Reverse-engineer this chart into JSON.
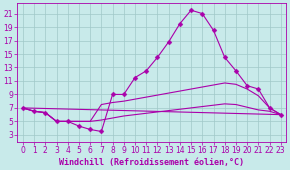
{
  "background_color": "#c8eaea",
  "grid_color": "#a0c8c8",
  "line_color": "#aa00aa",
  "xlabel": "Windchill (Refroidissement éolien,°C)",
  "xlabel_fontsize": 6,
  "ylabel_ticks": [
    3,
    5,
    7,
    9,
    11,
    13,
    15,
    17,
    19,
    21
  ],
  "xlabel_ticks": [
    0,
    1,
    2,
    3,
    4,
    5,
    6,
    7,
    8,
    9,
    10,
    11,
    12,
    13,
    14,
    15,
    16,
    17,
    18,
    19,
    20,
    21,
    22,
    23
  ],
  "xlim": [
    -0.5,
    23.5
  ],
  "ylim": [
    2.0,
    22.5
  ],
  "curve1_x": [
    0,
    1,
    2,
    3,
    4,
    5,
    6,
    7,
    8,
    9,
    10,
    11,
    12,
    13,
    14,
    15,
    16,
    17,
    18,
    19,
    20,
    21,
    22,
    23
  ],
  "curve1_y": [
    7.0,
    6.5,
    6.3,
    5.0,
    5.0,
    4.3,
    3.8,
    3.5,
    9.0,
    9.0,
    11.5,
    12.5,
    14.5,
    16.8,
    19.5,
    21.5,
    21.0,
    18.5,
    14.5,
    12.5,
    10.3,
    9.8,
    7.0,
    6.0
  ],
  "curve2_x": [
    0,
    1,
    2,
    3,
    4,
    5,
    6,
    7,
    8,
    9,
    10,
    11,
    12,
    13,
    14,
    15,
    16,
    17,
    18,
    19,
    20,
    21,
    22,
    23
  ],
  "curve2_y": [
    7.0,
    6.5,
    6.3,
    5.0,
    5.0,
    5.0,
    5.0,
    7.5,
    7.8,
    8.0,
    8.3,
    8.6,
    8.9,
    9.2,
    9.5,
    9.8,
    10.1,
    10.4,
    10.7,
    10.5,
    9.8,
    8.8,
    7.0,
    6.0
  ],
  "curve3_x": [
    0,
    1,
    2,
    3,
    4,
    5,
    6,
    7,
    8,
    9,
    10,
    11,
    12,
    13,
    14,
    15,
    16,
    17,
    18,
    19,
    20,
    21,
    22,
    23
  ],
  "curve3_y": [
    7.0,
    6.5,
    6.3,
    5.0,
    5.0,
    5.0,
    5.0,
    5.2,
    5.5,
    5.8,
    6.0,
    6.2,
    6.4,
    6.6,
    6.8,
    7.0,
    7.2,
    7.4,
    7.6,
    7.5,
    7.1,
    6.7,
    6.5,
    6.0
  ],
  "curve4_x": [
    0,
    23
  ],
  "curve4_y": [
    7.0,
    6.0
  ],
  "marker_size": 2.5,
  "tick_fontsize": 5.5,
  "figwidth": 2.9,
  "figheight": 1.7,
  "dpi": 100
}
